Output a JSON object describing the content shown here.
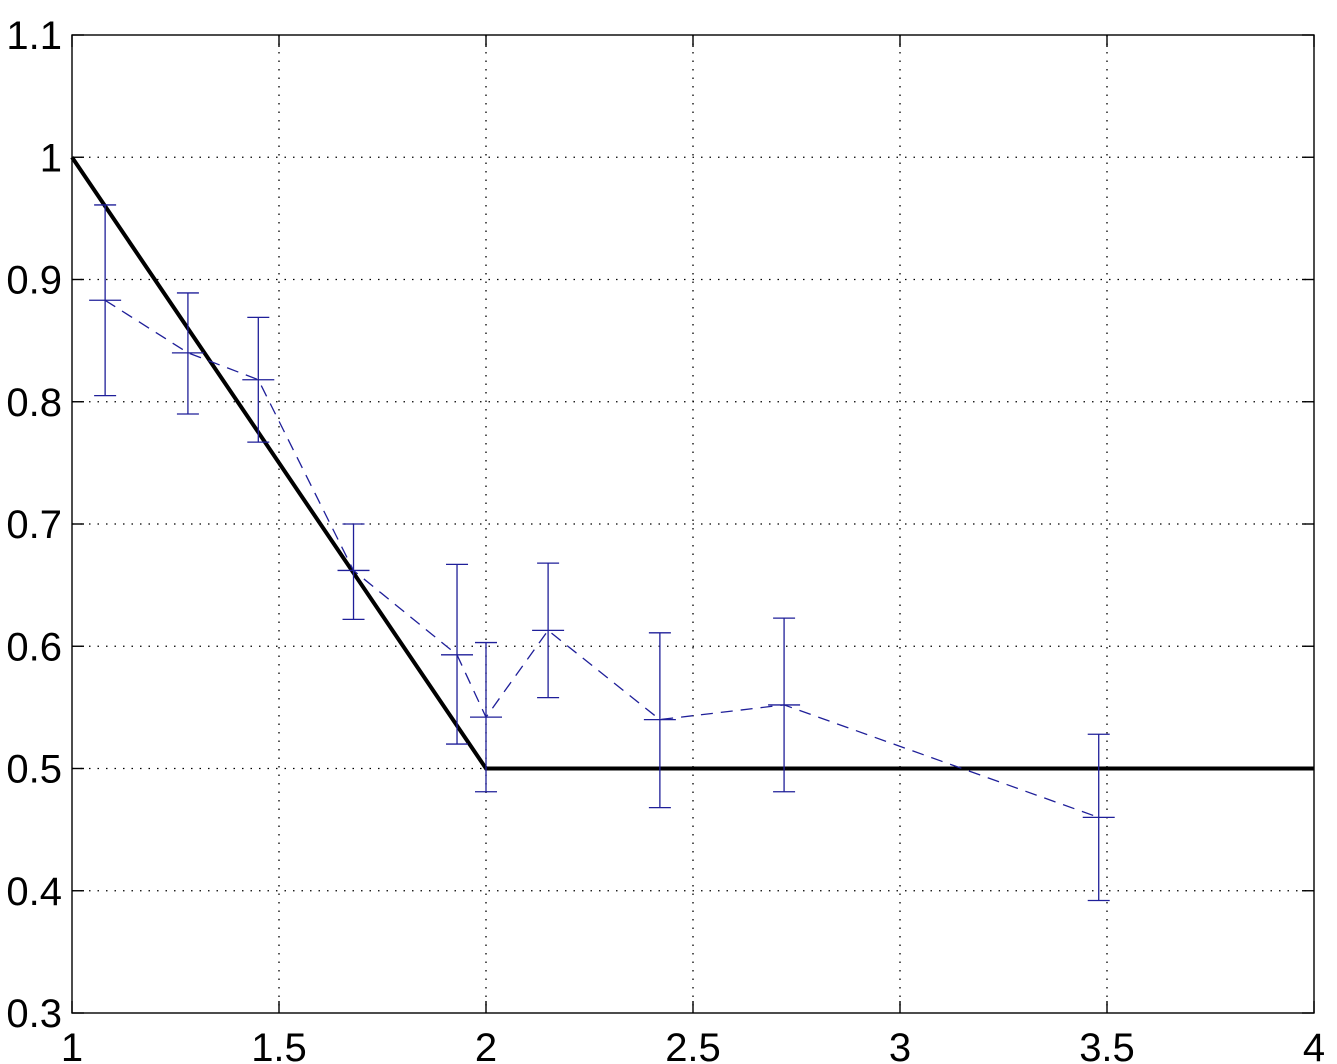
{
  "chart_data": {
    "type": "line",
    "title": "",
    "xlabel": "",
    "ylabel": "",
    "xlim": [
      1,
      4
    ],
    "ylim": [
      0.3,
      1.1
    ],
    "grid": true,
    "x_ticks": [
      "1",
      "1.5",
      "2",
      "2.5",
      "3",
      "3.5",
      "4"
    ],
    "y_ticks": [
      "0.3",
      "0.4",
      "0.5",
      "0.6",
      "0.7",
      "0.8",
      "0.9",
      "1",
      "1.1"
    ],
    "x_tick_values": [
      1,
      1.5,
      2,
      2.5,
      3,
      3.5,
      4
    ],
    "y_tick_values": [
      0.3,
      0.4,
      0.5,
      0.6,
      0.7,
      0.8,
      0.9,
      1.0,
      1.1
    ],
    "series": [
      {
        "style": "solid",
        "color": "#000000",
        "x": [
          1.0,
          2.0,
          4.0
        ],
        "y": [
          1.0,
          0.5,
          0.5
        ]
      },
      {
        "style": "dashed-errorbar",
        "color": "#1f1f99",
        "x": [
          1.08,
          1.28,
          1.45,
          1.68,
          1.93,
          2.0,
          2.15,
          2.42,
          2.72,
          3.48
        ],
        "y": [
          0.883,
          0.84,
          0.818,
          0.662,
          0.593,
          0.542,
          0.613,
          0.54,
          0.552,
          0.46
        ],
        "err_low": [
          0.805,
          0.79,
          0.767,
          0.622,
          0.52,
          0.481,
          0.558,
          0.468,
          0.481,
          0.392
        ],
        "err_high": [
          0.961,
          0.889,
          0.869,
          0.7,
          0.667,
          0.603,
          0.668,
          0.611,
          0.623,
          0.528
        ]
      }
    ]
  }
}
